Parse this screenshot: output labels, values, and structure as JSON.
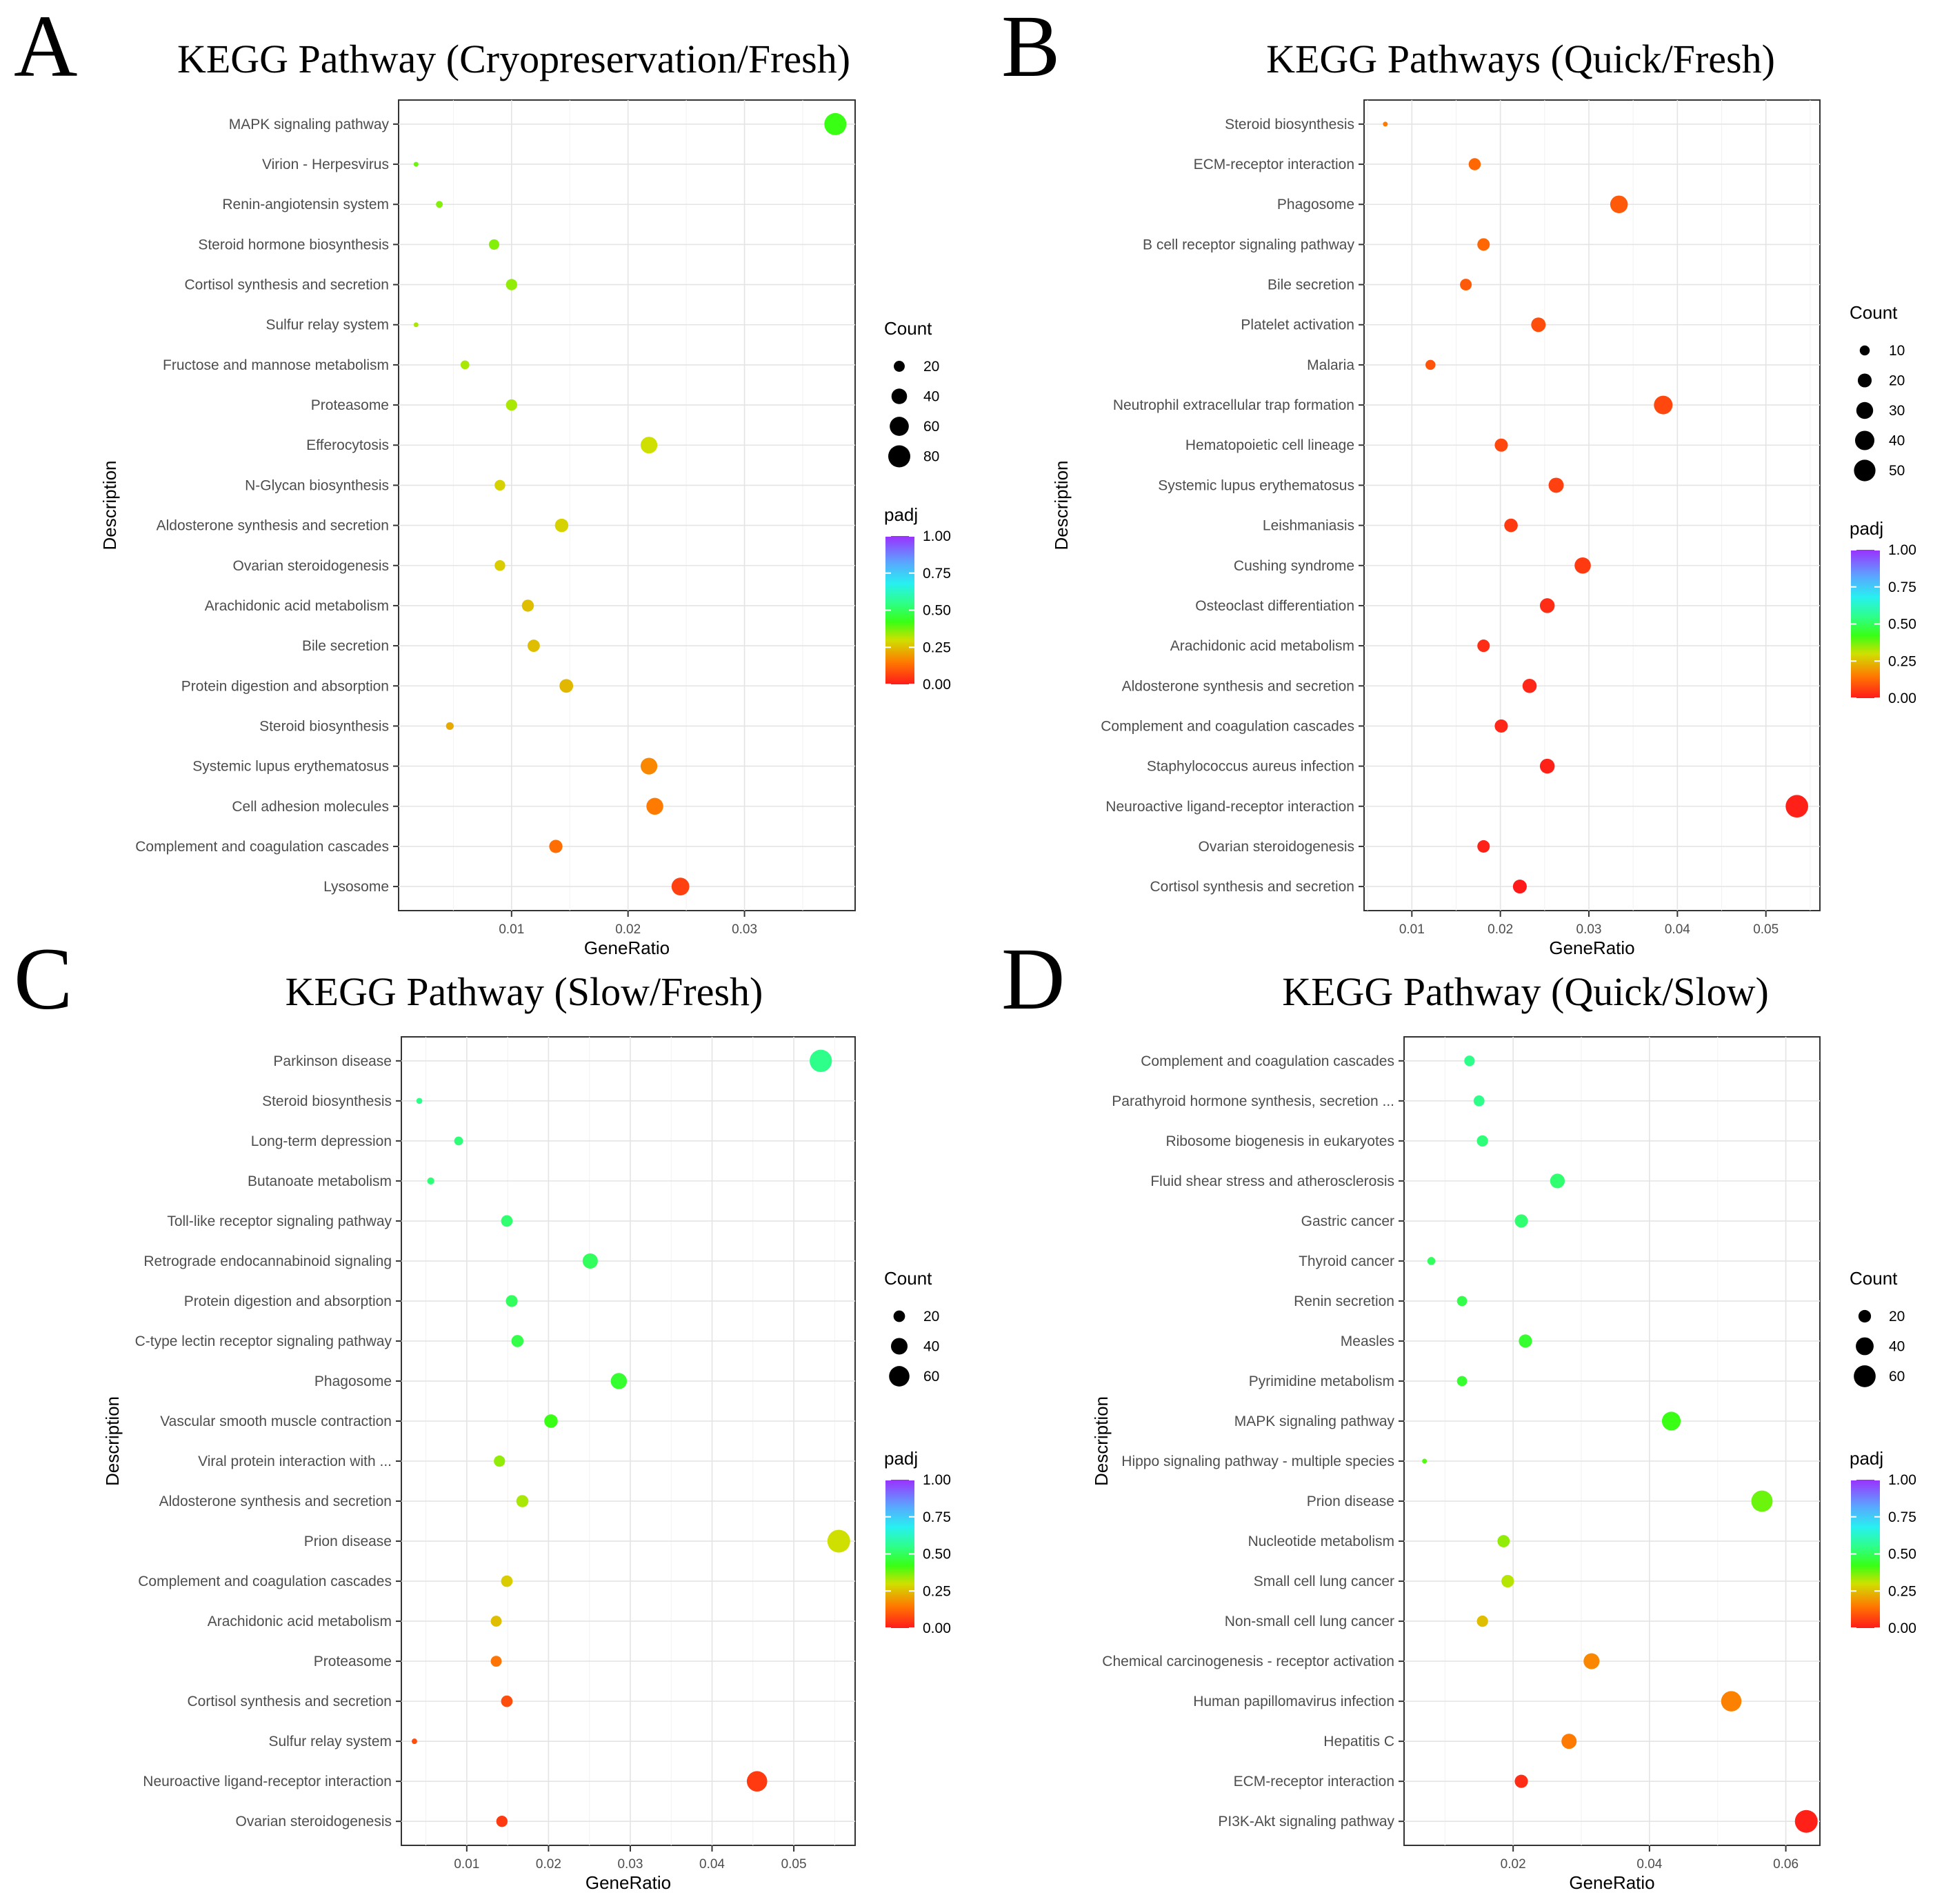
{
  "colors": {
    "padj_low": "#ff1a1a",
    "padj_mid": "#39ff14",
    "padj_high": "#9b30ff"
  },
  "chart_data": [
    {
      "panel": "A",
      "title": "KEGG Pathway (Cryopreservation/Fresh)",
      "type": "scatter",
      "xlabel": "GeneRatio",
      "ylabel": "Description",
      "xlim": [
        0.0003,
        0.0395
      ],
      "xticks": [
        0.01,
        0.02,
        0.03
      ],
      "xticklabels": [
        "0.01",
        "0.02",
        "0.03"
      ],
      "size_legend": {
        "title": "Count",
        "values": [
          20,
          40,
          60,
          80
        ]
      },
      "size_range": [
        4,
        85
      ],
      "color_legend": {
        "title": "padj",
        "ticks": [
          1.0,
          0.75,
          0.5,
          0.25,
          0.0
        ],
        "ticklabels": [
          "1.00",
          "0.75",
          "0.50",
          "0.25",
          "0.00"
        ]
      },
      "points": [
        {
          "description": "MAPK signaling pathway",
          "gene_ratio": 0.0378,
          "count": 80,
          "padj": 0.42
        },
        {
          "description": "Virion - Herpesvirus",
          "gene_ratio": 0.0018,
          "count": 4,
          "padj": 0.38
        },
        {
          "description": "Renin-angiotensin system",
          "gene_ratio": 0.0038,
          "count": 8,
          "padj": 0.36
        },
        {
          "description": "Steroid hormone biosynthesis",
          "gene_ratio": 0.0085,
          "count": 18,
          "padj": 0.36
        },
        {
          "description": "Cortisol synthesis and secretion",
          "gene_ratio": 0.01,
          "count": 21,
          "padj": 0.35
        },
        {
          "description": "Sulfur relay system",
          "gene_ratio": 0.0018,
          "count": 4,
          "padj": 0.33
        },
        {
          "description": "Fructose and mannose metabolism",
          "gene_ratio": 0.006,
          "count": 13,
          "padj": 0.33
        },
        {
          "description": "Proteasome",
          "gene_ratio": 0.01,
          "count": 21,
          "padj": 0.33
        },
        {
          "description": "Efferocytosis",
          "gene_ratio": 0.0218,
          "count": 46,
          "padj": 0.3
        },
        {
          "description": "N-Glycan biosynthesis",
          "gene_ratio": 0.009,
          "count": 19,
          "padj": 0.28
        },
        {
          "description": "Aldosterone synthesis and secretion",
          "gene_ratio": 0.0143,
          "count": 30,
          "padj": 0.28
        },
        {
          "description": "Ovarian steroidogenesis",
          "gene_ratio": 0.009,
          "count": 19,
          "padj": 0.27
        },
        {
          "description": "Arachidonic acid metabolism",
          "gene_ratio": 0.0114,
          "count": 24,
          "padj": 0.25
        },
        {
          "description": "Bile secretion",
          "gene_ratio": 0.0119,
          "count": 25,
          "padj": 0.25
        },
        {
          "description": "Protein digestion and absorption",
          "gene_ratio": 0.0147,
          "count": 31,
          "padj": 0.24
        },
        {
          "description": "Steroid biosynthesis",
          "gene_ratio": 0.0047,
          "count": 10,
          "padj": 0.22
        },
        {
          "description": "Systemic lupus erythematosus",
          "gene_ratio": 0.0218,
          "count": 46,
          "padj": 0.17
        },
        {
          "description": "Cell adhesion molecules",
          "gene_ratio": 0.0223,
          "count": 47,
          "padj": 0.15
        },
        {
          "description": "Complement and coagulation cascades",
          "gene_ratio": 0.0138,
          "count": 29,
          "padj": 0.13
        },
        {
          "description": "Lysosome",
          "gene_ratio": 0.0245,
          "count": 52,
          "padj": 0.06
        }
      ]
    },
    {
      "panel": "B",
      "title": "KEGG Pathways (Quick/Fresh)",
      "type": "scatter",
      "xlabel": "GeneRatio",
      "ylabel": "Description",
      "xlim": [
        0.0046,
        0.0561
      ],
      "xticks": [
        0.01,
        0.02,
        0.03,
        0.04,
        0.05
      ],
      "xticklabels": [
        "0.01",
        "0.02",
        "0.03",
        "0.04",
        "0.05"
      ],
      "size_legend": {
        "title": "Count",
        "values": [
          10,
          20,
          30,
          40,
          50
        ]
      },
      "size_range": [
        2,
        56
      ],
      "color_legend": {
        "title": "padj",
        "ticks": [
          1.0,
          0.75,
          0.5,
          0.25,
          0.0
        ],
        "ticklabels": [
          "1.00",
          "0.75",
          "0.50",
          "0.25",
          "0.00"
        ]
      },
      "points": [
        {
          "description": "Steroid biosynthesis",
          "gene_ratio": 0.007,
          "count": 2,
          "padj": 0.15
        },
        {
          "description": "ECM-receptor interaction",
          "gene_ratio": 0.0171,
          "count": 15,
          "padj": 0.12
        },
        {
          "description": "Phagosome",
          "gene_ratio": 0.0334,
          "count": 33,
          "padj": 0.1
        },
        {
          "description": "B cell receptor signaling pathway",
          "gene_ratio": 0.0181,
          "count": 16,
          "padj": 0.12
        },
        {
          "description": "Bile secretion",
          "gene_ratio": 0.0161,
          "count": 14,
          "padj": 0.1
        },
        {
          "description": "Platelet activation",
          "gene_ratio": 0.0243,
          "count": 22,
          "padj": 0.08
        },
        {
          "description": "Malaria",
          "gene_ratio": 0.0121,
          "count": 10,
          "padj": 0.09
        },
        {
          "description": "Neutrophil extracellular trap formation",
          "gene_ratio": 0.0384,
          "count": 37,
          "padj": 0.07
        },
        {
          "description": "Hematopoietic cell lineage",
          "gene_ratio": 0.0201,
          "count": 18,
          "padj": 0.07
        },
        {
          "description": "Systemic lupus erythematosus",
          "gene_ratio": 0.0263,
          "count": 24,
          "padj": 0.06
        },
        {
          "description": "Leishmaniasis",
          "gene_ratio": 0.0212,
          "count": 19,
          "padj": 0.05
        },
        {
          "description": "Cushing syndrome",
          "gene_ratio": 0.0293,
          "count": 28,
          "padj": 0.05
        },
        {
          "description": "Osteoclast differentiation",
          "gene_ratio": 0.0253,
          "count": 23,
          "padj": 0.03
        },
        {
          "description": "Arachidonic acid metabolism",
          "gene_ratio": 0.0181,
          "count": 16,
          "padj": 0.03
        },
        {
          "description": "Aldosterone synthesis and secretion",
          "gene_ratio": 0.0233,
          "count": 21,
          "padj": 0.02
        },
        {
          "description": "Complement and coagulation cascades",
          "gene_ratio": 0.0201,
          "count": 18,
          "padj": 0.02
        },
        {
          "description": "Staphylococcus aureus infection",
          "gene_ratio": 0.0253,
          "count": 23,
          "padj": 0.01
        },
        {
          "description": "Neuroactive ligand-receptor interaction",
          "gene_ratio": 0.0535,
          "count": 55,
          "padj": 0.01
        },
        {
          "description": "Ovarian steroidogenesis",
          "gene_ratio": 0.0181,
          "count": 16,
          "padj": 0.01
        },
        {
          "description": "Cortisol synthesis and secretion",
          "gene_ratio": 0.0222,
          "count": 20,
          "padj": 0.0
        }
      ]
    },
    {
      "panel": "C",
      "title": "KEGG Pathway (Slow/Fresh)",
      "type": "scatter",
      "xlabel": "GeneRatio",
      "ylabel": "Description",
      "xlim": [
        0.002,
        0.0575
      ],
      "xticks": [
        0.01,
        0.02,
        0.03,
        0.04,
        0.05
      ],
      "xticklabels": [
        "0.01",
        "0.02",
        "0.03",
        "0.04",
        "0.05"
      ],
      "size_legend": {
        "title": "Count",
        "values": [
          20,
          40,
          60
        ]
      },
      "size_range": [
        4,
        74
      ],
      "color_legend": {
        "title": "padj",
        "ticks": [
          1.0,
          0.75,
          0.5,
          0.25,
          0.0
        ],
        "ticklabels": [
          "1.00",
          "0.75",
          "0.50",
          "0.25",
          "0.00"
        ]
      },
      "points": [
        {
          "description": "Parkinson disease",
          "gene_ratio": 0.0533,
          "count": 71,
          "padj": 0.55
        },
        {
          "description": "Steroid biosynthesis",
          "gene_ratio": 0.0042,
          "count": 6,
          "padj": 0.55
        },
        {
          "description": "Long-term depression",
          "gene_ratio": 0.009,
          "count": 12,
          "padj": 0.53
        },
        {
          "description": "Butanoate metabolism",
          "gene_ratio": 0.0056,
          "count": 8,
          "padj": 0.53
        },
        {
          "description": "Toll-like receptor signaling pathway",
          "gene_ratio": 0.0149,
          "count": 20,
          "padj": 0.52
        },
        {
          "description": "Retrograde endocannabinoid signaling",
          "gene_ratio": 0.0251,
          "count": 34,
          "padj": 0.5
        },
        {
          "description": "Protein digestion and absorption",
          "gene_ratio": 0.0155,
          "count": 21,
          "padj": 0.5
        },
        {
          "description": "C-type lectin receptor signaling pathway",
          "gene_ratio": 0.0162,
          "count": 22,
          "padj": 0.48
        },
        {
          "description": "Phagosome",
          "gene_ratio": 0.0286,
          "count": 38,
          "padj": 0.45
        },
        {
          "description": "Vascular smooth muscle contraction",
          "gene_ratio": 0.0203,
          "count": 27,
          "padj": 0.42
        },
        {
          "description": "Viral protein interaction with ...",
          "gene_ratio": 0.014,
          "count": 19,
          "padj": 0.35
        },
        {
          "description": "Aldosterone synthesis and secretion",
          "gene_ratio": 0.0168,
          "count": 22,
          "padj": 0.33
        },
        {
          "description": "Prion disease",
          "gene_ratio": 0.0555,
          "count": 74,
          "padj": 0.3
        },
        {
          "description": "Complement and coagulation cascades",
          "gene_ratio": 0.0149,
          "count": 20,
          "padj": 0.27
        },
        {
          "description": "Arachidonic acid metabolism",
          "gene_ratio": 0.0136,
          "count": 18,
          "padj": 0.25
        },
        {
          "description": "Proteasome",
          "gene_ratio": 0.0136,
          "count": 18,
          "padj": 0.14
        },
        {
          "description": "Cortisol synthesis and secretion",
          "gene_ratio": 0.0149,
          "count": 20,
          "padj": 0.08
        },
        {
          "description": "Sulfur relay system",
          "gene_ratio": 0.0036,
          "count": 5,
          "padj": 0.08
        },
        {
          "description": "Neuroactive ligand-receptor interaction",
          "gene_ratio": 0.0455,
          "count": 60,
          "padj": 0.05
        },
        {
          "description": "Ovarian steroidogenesis",
          "gene_ratio": 0.0143,
          "count": 19,
          "padj": 0.05
        }
      ]
    },
    {
      "panel": "D",
      "title": "KEGG Pathway (Quick/Slow)",
      "type": "scatter",
      "xlabel": "GeneRatio",
      "ylabel": "Description",
      "xlim": [
        0.004,
        0.065
      ],
      "xticks": [
        0.02,
        0.04,
        0.06
      ],
      "xticklabels": [
        "0.02",
        "0.04",
        "0.06"
      ],
      "size_legend": {
        "title": "Count",
        "values": [
          20,
          40,
          60
        ]
      },
      "size_range": [
        3,
        65
      ],
      "color_legend": {
        "title": "padj",
        "ticks": [
          1.0,
          0.75,
          0.5,
          0.25,
          0.0
        ],
        "ticklabels": [
          "1.00",
          "0.75",
          "0.50",
          "0.25",
          "0.00"
        ]
      },
      "points": [
        {
          "description": "Complement and coagulation cascades",
          "gene_ratio": 0.0136,
          "count": 14,
          "padj": 0.55
        },
        {
          "description": "Parathyroid hormone synthesis, secretion ...",
          "gene_ratio": 0.015,
          "count": 15,
          "padj": 0.55
        },
        {
          "description": "Ribosome biogenesis in eukaryotes",
          "gene_ratio": 0.0155,
          "count": 16,
          "padj": 0.53
        },
        {
          "description": "Fluid shear stress and atherosclerosis",
          "gene_ratio": 0.0265,
          "count": 27,
          "padj": 0.52
        },
        {
          "description": "Gastric cancer",
          "gene_ratio": 0.0212,
          "count": 22,
          "padj": 0.52
        },
        {
          "description": "Thyroid cancer",
          "gene_ratio": 0.008,
          "count": 8,
          "padj": 0.5
        },
        {
          "description": "Renin secretion",
          "gene_ratio": 0.0125,
          "count": 13,
          "padj": 0.48
        },
        {
          "description": "Measles",
          "gene_ratio": 0.0218,
          "count": 22,
          "padj": 0.45
        },
        {
          "description": "Pyrimidine metabolism",
          "gene_ratio": 0.0125,
          "count": 13,
          "padj": 0.45
        },
        {
          "description": "MAPK signaling pathway",
          "gene_ratio": 0.0432,
          "count": 44,
          "padj": 0.42
        },
        {
          "description": "Hippo signaling pathway - multiple species",
          "gene_ratio": 0.007,
          "count": 3,
          "padj": 0.4
        },
        {
          "description": "Prion disease",
          "gene_ratio": 0.0565,
          "count": 57,
          "padj": 0.38
        },
        {
          "description": "Nucleotide metabolism",
          "gene_ratio": 0.0186,
          "count": 19,
          "padj": 0.35
        },
        {
          "description": "Small cell lung cancer",
          "gene_ratio": 0.0192,
          "count": 20,
          "padj": 0.32
        },
        {
          "description": "Non-small cell lung cancer",
          "gene_ratio": 0.0155,
          "count": 16,
          "padj": 0.25
        },
        {
          "description": "Chemical carcinogenesis - receptor activation",
          "gene_ratio": 0.0315,
          "count": 32,
          "padj": 0.17
        },
        {
          "description": "Human papillomavirus infection",
          "gene_ratio": 0.052,
          "count": 52,
          "padj": 0.16
        },
        {
          "description": "Hepatitis C",
          "gene_ratio": 0.0282,
          "count": 29,
          "padj": 0.15
        },
        {
          "description": "ECM-receptor interaction",
          "gene_ratio": 0.0212,
          "count": 22,
          "padj": 0.03
        },
        {
          "description": "PI3K-Akt signaling pathway",
          "gene_ratio": 0.063,
          "count": 65,
          "padj": 0.01
        }
      ]
    }
  ]
}
